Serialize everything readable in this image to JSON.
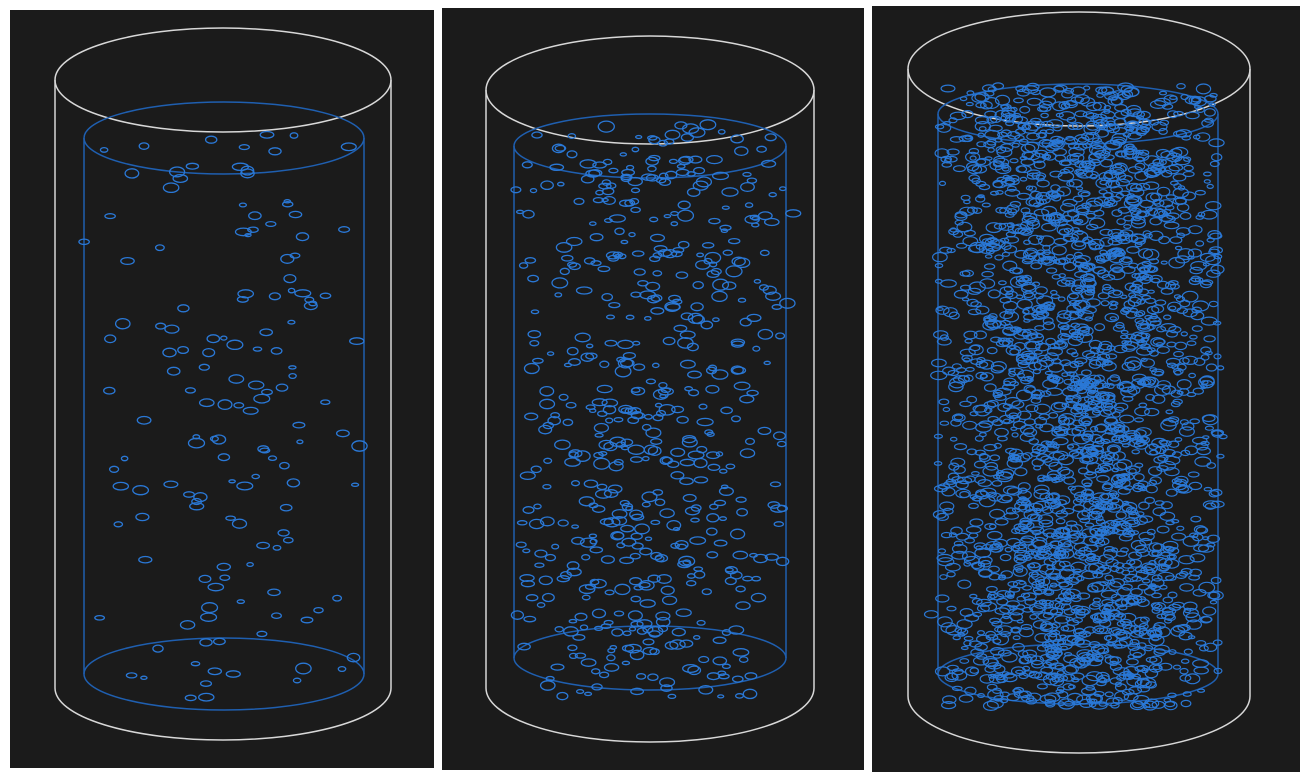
{
  "figure": {
    "panels": [
      {
        "name": "sparse",
        "density_level": "low"
      },
      {
        "name": "medium",
        "density_level": "medium"
      },
      {
        "name": "dense",
        "density_level": "high"
      }
    ]
  },
  "colors": {
    "background": "#1b1b1b",
    "outer_cylinder": "#d8d8d8",
    "inner_cylinder": "#1f5fb0",
    "bubble": "#2a78d6"
  }
}
